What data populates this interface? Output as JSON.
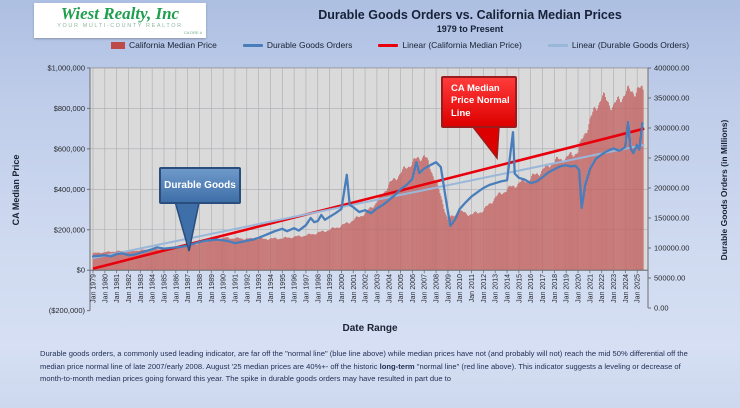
{
  "logo": {
    "name": "Wiest Realty, Inc",
    "tagline": "YOUR MULTI-COUNTY REALTOR",
    "license": "CA DRE #"
  },
  "header": {
    "title": "Durable Goods Orders vs. California Median Prices",
    "subtitle": "1979 to Present"
  },
  "legend": {
    "items": [
      {
        "label": "California Median Price",
        "swatch": "bar",
        "color": "#bb4a48"
      },
      {
        "label": "Durable Goods Orders",
        "swatch": "line",
        "color": "#4a7ebb"
      },
      {
        "label": "Linear (California Median Price)",
        "swatch": "line",
        "color": "#e8000d"
      },
      {
        "label": "Linear (Durable Goods Orders)",
        "swatch": "line",
        "color": "#9ab7d9"
      }
    ]
  },
  "callouts": {
    "durable_goods": "Durable Goods",
    "ca_median": "CA Median Price Normal Line"
  },
  "axes": {
    "left_title": "CA Median Price",
    "right_title": "Durable Goods Orders (in Millions)",
    "x_title": "Date Range",
    "left_ticks": [
      {
        "label": "$1,000,000",
        "value": 1000000
      },
      {
        "label": "$800,000",
        "value": 800000
      },
      {
        "label": "$600,000",
        "value": 600000
      },
      {
        "label": "$400,000",
        "value": 400000
      },
      {
        "label": "$200,000",
        "value": 200000
      },
      {
        "label": "$0",
        "value": 0
      },
      {
        "label": "($200,000)",
        "value": -200000
      }
    ],
    "right_ticks": [
      {
        "label": "400000.00",
        "value": 400000
      },
      {
        "label": "350000.00",
        "value": 350000
      },
      {
        "label": "300000.00",
        "value": 300000
      },
      {
        "label": "250000.00",
        "value": 250000
      },
      {
        "label": "200000.00",
        "value": 200000
      },
      {
        "label": "150000.00",
        "value": 150000
      },
      {
        "label": "100000.00",
        "value": 100000
      },
      {
        "label": "50000.00",
        "value": 50000
      },
      {
        "label": "0.00",
        "value": 0
      }
    ],
    "x_ticks": [
      "Jan 1979",
      "Jan 1980",
      "Jan 1981",
      "Jan 1982",
      "Jan 1983",
      "Jan 1984",
      "Jan 1985",
      "Jan 1986",
      "Jan 1987",
      "Jan 1988",
      "Jan 1989",
      "Jan 1990",
      "Jan 1991",
      "Jan 1992",
      "Jan 1993",
      "Jan 1994",
      "Jan 1995",
      "Jan 1996",
      "Jan 1997",
      "Jan 1998",
      "Jan 1999",
      "Jan 2000",
      "Jan 2001",
      "Jan 2002",
      "Jan 2003",
      "Jan 2004",
      "Jan 2005",
      "Jan 2006",
      "Jan 2007",
      "Jan 2008",
      "Jan 2009",
      "Jan 2010",
      "Jan 2011",
      "Jan 2012",
      "Jan 2013",
      "Jan 2014",
      "Jan 2015",
      "Jan 2016",
      "Jan 2017",
      "Jan 2018",
      "Jan 2019",
      "Jan 2020",
      "Jan 2021",
      "Jan 2022",
      "Jan 2023",
      "Jan 2024",
      "Jan 2025"
    ]
  },
  "chart_data": {
    "type": "combo",
    "title": "Durable Goods Orders vs. California Median Prices",
    "subtitle": "1979 to Present",
    "x_label": "Date Range",
    "x_range": [
      1979,
      2025.6
    ],
    "grid": true,
    "left_axis": {
      "label": "CA Median Price",
      "min": -200000,
      "max": 1000000,
      "tick_step": 200000
    },
    "right_axis": {
      "label": "Durable Goods Orders (in Millions)",
      "min": 0,
      "max": 400000,
      "tick_step": 50000
    },
    "series": [
      {
        "name": "California Median Price",
        "type": "bar",
        "axis": "left",
        "color": "#bb4a48",
        "years": [
          1979,
          1980,
          1981,
          1982,
          1983,
          1984,
          1985,
          1986,
          1987,
          1988,
          1989,
          1990,
          1991,
          1992,
          1993,
          1994,
          1995,
          1996,
          1997,
          1998,
          1999,
          2000,
          2001,
          2002,
          2003,
          2004,
          2005,
          2006,
          2007,
          2008,
          2009,
          2010,
          2011,
          2012,
          2013,
          2014,
          2015,
          2016,
          2017,
          2018,
          2019,
          2020,
          2021,
          2022,
          2023,
          2024,
          2025
        ],
        "values": [
          84000,
          89000,
          94000,
          94000,
          99000,
          102000,
          106000,
          114000,
          122000,
          134000,
          149000,
          160000,
          158000,
          156000,
          155000,
          156000,
          158000,
          165000,
          172000,
          185000,
          200000,
          220000,
          248000,
          282000,
          337000,
          421000,
          480000,
          535000,
          570000,
          440000,
          250000,
          290000,
          275000,
          295000,
          360000,
          400000,
          430000,
          455000,
          495000,
          540000,
          555000,
          590000,
          740000,
          860000,
          810000,
          880000,
          890000
        ]
      },
      {
        "name": "Durable Goods Orders",
        "type": "line",
        "axis": "right",
        "color": "#4a7ebb",
        "points": [
          [
            1979,
            86000
          ],
          [
            1979.5,
            87000
          ],
          [
            1980,
            88000
          ],
          [
            1980.5,
            86000
          ],
          [
            1981,
            90000
          ],
          [
            1981.5,
            91000
          ],
          [
            1982,
            88000
          ],
          [
            1982.5,
            89000
          ],
          [
            1983,
            92000
          ],
          [
            1983.5,
            95000
          ],
          [
            1984,
            98000
          ],
          [
            1984.4,
            101000
          ],
          [
            1985,
            99000
          ],
          [
            1985.5,
            100000
          ],
          [
            1986,
            101000
          ],
          [
            1986.5,
            102000
          ],
          [
            1987,
            104000
          ],
          [
            1987.5,
            107000
          ],
          [
            1988,
            110000
          ],
          [
            1988.5,
            112000
          ],
          [
            1989,
            113000
          ],
          [
            1989.5,
            114000
          ],
          [
            1990,
            113000
          ],
          [
            1990.5,
            111000
          ],
          [
            1991,
            108000
          ],
          [
            1991.5,
            110000
          ],
          [
            1992,
            112000
          ],
          [
            1992.5,
            114000
          ],
          [
            1993,
            117000
          ],
          [
            1993.5,
            121000
          ],
          [
            1994,
            125000
          ],
          [
            1994.5,
            129000
          ],
          [
            1995,
            132000
          ],
          [
            1995.4,
            128000
          ],
          [
            1996,
            133000
          ],
          [
            1996.4,
            129000
          ],
          [
            1997,
            138000
          ],
          [
            1997.4,
            150000
          ],
          [
            1997.7,
            143000
          ],
          [
            1998,
            145000
          ],
          [
            1998.3,
            155000
          ],
          [
            1998.6,
            147000
          ],
          [
            1999,
            152000
          ],
          [
            1999.5,
            158000
          ],
          [
            2000,
            165000
          ],
          [
            2000.45,
            222000
          ],
          [
            2000.7,
            172000
          ],
          [
            2001,
            168000
          ],
          [
            2001.5,
            160000
          ],
          [
            2002,
            163000
          ],
          [
            2002.5,
            158000
          ],
          [
            2003,
            166000
          ],
          [
            2003.5,
            172000
          ],
          [
            2004,
            180000
          ],
          [
            2004.5,
            188000
          ],
          [
            2005,
            198000
          ],
          [
            2005.5,
            205000
          ],
          [
            2006,
            215000
          ],
          [
            2006.35,
            243000
          ],
          [
            2006.6,
            225000
          ],
          [
            2007,
            232000
          ],
          [
            2007.5,
            238000
          ],
          [
            2008,
            243000
          ],
          [
            2008.4,
            235000
          ],
          [
            2008.8,
            185000
          ],
          [
            2009.2,
            137000
          ],
          [
            2009.6,
            148000
          ],
          [
            2010,
            165000
          ],
          [
            2010.5,
            176000
          ],
          [
            2011,
            186000
          ],
          [
            2011.5,
            193000
          ],
          [
            2012,
            200000
          ],
          [
            2012.5,
            205000
          ],
          [
            2013,
            208000
          ],
          [
            2013.5,
            211000
          ],
          [
            2014,
            213000
          ],
          [
            2014.5,
            293000
          ],
          [
            2014.65,
            224000
          ],
          [
            2015,
            217000
          ],
          [
            2015.5,
            214000
          ],
          [
            2016,
            208000
          ],
          [
            2016.5,
            211000
          ],
          [
            2017,
            218000
          ],
          [
            2017.5,
            226000
          ],
          [
            2018,
            231000
          ],
          [
            2018.5,
            236000
          ],
          [
            2019,
            238000
          ],
          [
            2019.4,
            236000
          ],
          [
            2019.8,
            237000
          ],
          [
            2020.1,
            230000
          ],
          [
            2020.3,
            167000
          ],
          [
            2020.6,
            205000
          ],
          [
            2021,
            232000
          ],
          [
            2021.5,
            249000
          ],
          [
            2022,
            256000
          ],
          [
            2022.5,
            262000
          ],
          [
            2023,
            266000
          ],
          [
            2023.5,
            262000
          ],
          [
            2024,
            268000
          ],
          [
            2024.25,
            310000
          ],
          [
            2024.45,
            266000
          ],
          [
            2024.7,
            258000
          ],
          [
            2025,
            272000
          ],
          [
            2025.2,
            264000
          ],
          [
            2025.45,
            308000
          ]
        ]
      },
      {
        "name": "Linear (California Median Price)",
        "type": "trendline",
        "axis": "left",
        "color": "#e8000d",
        "points": [
          [
            1979,
            8000
          ],
          [
            2025.6,
            700000
          ]
        ]
      },
      {
        "name": "Linear (Durable Goods Orders)",
        "type": "trendline",
        "axis": "right",
        "color": "#9ab7d9",
        "points": [
          [
            1979,
            83000
          ],
          [
            2025.6,
            272000
          ]
        ]
      }
    ]
  },
  "footer": {
    "part1": "Durable goods orders, a commonly used leading indicator, are  far off the \"normal line\"  (blue line above) while median prices have not (and probably will not) reach the mid 50% differential off the median price normal line  of late 2007/early 2008. August '25 median prices are 40%+- off the historic ",
    "bold": "long-term",
    "part2": " \"normal line\"  (red line above). This indicator suggests a leveling or decrease of month-to-month  median prices going forward this year. The spike in durable goods orders may have resulted in part due to"
  }
}
